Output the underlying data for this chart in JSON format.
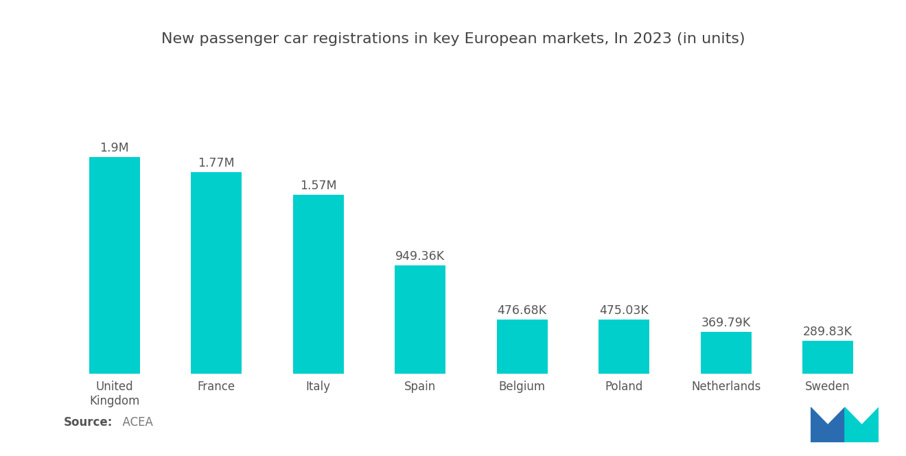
{
  "title": "New passenger car registrations in key European markets, In 2023 (in units)",
  "categories": [
    "United\nKingdom",
    "France",
    "Italy",
    "Spain",
    "Belgium",
    "Poland",
    "Netherlands",
    "Sweden"
  ],
  "values": [
    1900000,
    1770000,
    1570000,
    949360,
    476680,
    475030,
    369790,
    289830
  ],
  "labels": [
    "1.9M",
    "1.77M",
    "1.57M",
    "949.36K",
    "476.68K",
    "475.03K",
    "369.79K",
    "289.83K"
  ],
  "bar_color": "#00CFCC",
  "background_color": "#ffffff",
  "source_bold": "Source:",
  "source_normal": "  ACEA",
  "title_fontsize": 16,
  "label_fontsize": 12.5,
  "tick_fontsize": 12,
  "source_fontsize": 12,
  "ylim": [
    0,
    2400000
  ],
  "logo_blue": "#2B6CB0",
  "logo_teal": "#00CFCC"
}
